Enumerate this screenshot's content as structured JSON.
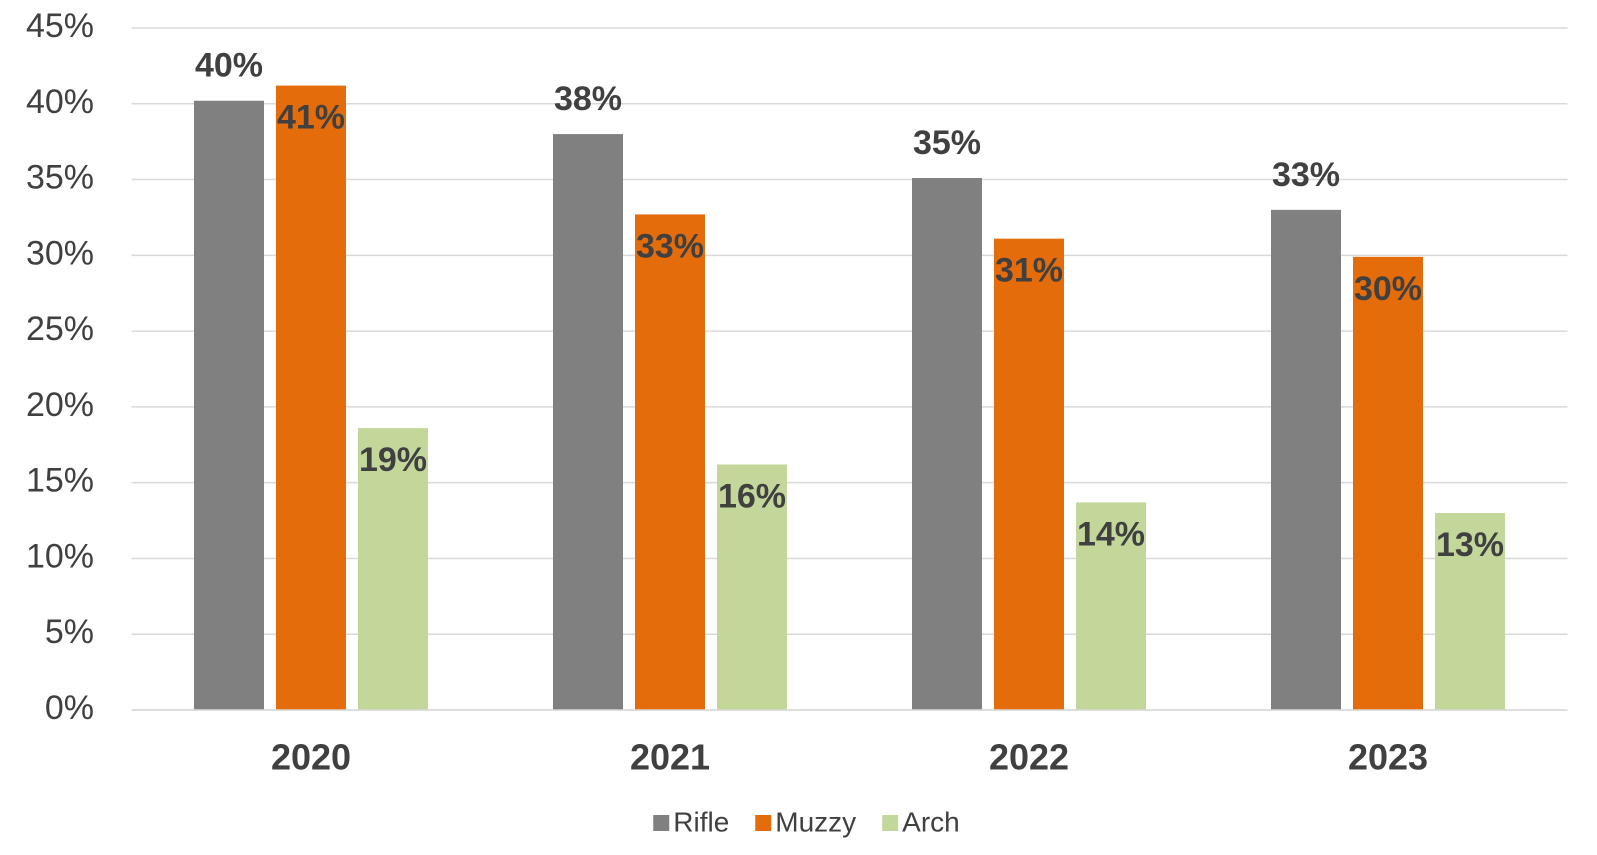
{
  "chart_data": {
    "type": "bar",
    "categories": [
      "2020",
      "2021",
      "2022",
      "2023"
    ],
    "series": [
      {
        "name": "Rifle",
        "color": "#808080",
        "values": [
          40.2,
          38.0,
          35.1,
          33.0
        ],
        "value_labels": [
          "40%",
          "38%",
          "35%",
          "33%"
        ]
      },
      {
        "name": "Muzzy",
        "color": "#e46c0a",
        "values": [
          41.2,
          32.7,
          31.1,
          29.9
        ],
        "value_labels": [
          "41%",
          "33%",
          "31%",
          "30%"
        ]
      },
      {
        "name": "Arch",
        "color": "#c4d79b",
        "values": [
          18.6,
          16.2,
          13.7,
          13.0
        ],
        "value_labels": [
          "19%",
          "16%",
          "14%",
          "13%"
        ]
      }
    ],
    "ylim": [
      0,
      45
    ],
    "yticks": [
      {
        "value": 0,
        "label": "0%"
      },
      {
        "value": 5,
        "label": "5%"
      },
      {
        "value": 10,
        "label": "10%"
      },
      {
        "value": 15,
        "label": "15%"
      },
      {
        "value": 20,
        "label": "20%"
      },
      {
        "value": 25,
        "label": "25%"
      },
      {
        "value": 30,
        "label": "30%"
      },
      {
        "value": 35,
        "label": "35%"
      },
      {
        "value": 40,
        "label": "40%"
      },
      {
        "value": 45,
        "label": "45%"
      }
    ],
    "grid": true,
    "legend": "bottom"
  }
}
